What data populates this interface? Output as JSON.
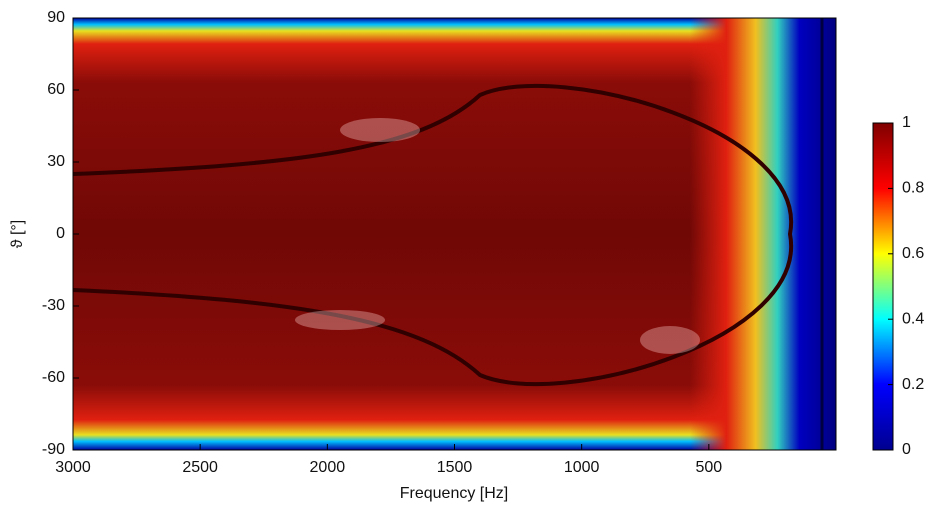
{
  "chart_data": {
    "type": "heatmap",
    "xlabel": "Frequency [Hz]",
    "ylabel": "ϑ [°]",
    "xlim": [
      3000,
      0
    ],
    "xticks": [
      3000,
      2500,
      2000,
      1500,
      1000,
      500
    ],
    "ylim": [
      -90,
      90
    ],
    "yticks": [
      -90,
      -60,
      -30,
      0,
      30,
      60,
      90
    ],
    "colormap": [
      "#00008f",
      "#0000ff",
      "#00ffff",
      "#ffff00",
      "#ff0000",
      "#800000"
    ],
    "colorbar_lim": [
      0,
      1
    ],
    "colorbar_ticks": [
      0,
      0.2,
      0.4,
      0.6,
      0.8,
      1
    ]
  }
}
